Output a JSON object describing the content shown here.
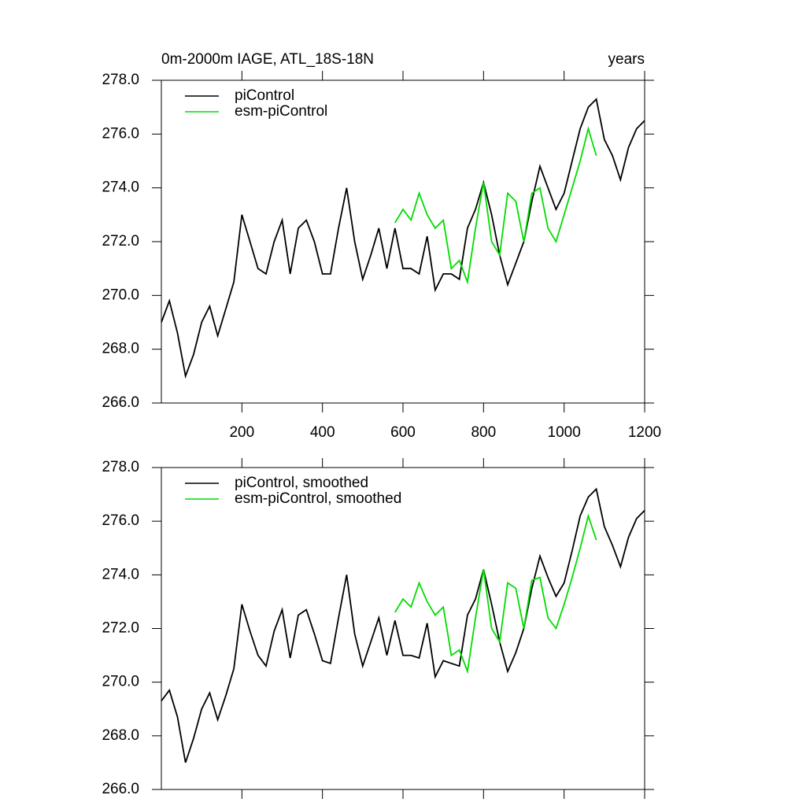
{
  "chart_data": [
    {
      "type": "line",
      "title": "0m-2000m IAGE, ATL_18S-18N",
      "xlabel": "years",
      "xlim": [
        0,
        1200
      ],
      "xticks": [
        200,
        400,
        600,
        800,
        1000,
        1200
      ],
      "show_xtick_labels": true,
      "ylim": [
        266,
        278
      ],
      "yticks": [
        {
          "value": 266,
          "label": "266.0"
        },
        {
          "value": 268,
          "label": "268.0"
        },
        {
          "value": 270,
          "label": "270.0"
        },
        {
          "value": 272,
          "label": "272.0"
        },
        {
          "value": 274,
          "label": "274.0"
        },
        {
          "value": 276,
          "label": "276.0"
        },
        {
          "value": 278,
          "label": "278.0"
        }
      ],
      "legend": "upper left",
      "series": [
        {
          "name": "piControl",
          "color": "#000000",
          "x": [
            0,
            20,
            40,
            60,
            80,
            100,
            120,
            140,
            160,
            180,
            200,
            220,
            240,
            260,
            280,
            300,
            320,
            340,
            360,
            380,
            400,
            420,
            440,
            460,
            480,
            500,
            520,
            540,
            560,
            580,
            600,
            620,
            640,
            660,
            680,
            700,
            720,
            740,
            760,
            780,
            800,
            820,
            840,
            860,
            880,
            900,
            920,
            940,
            960,
            980,
            1000,
            1020,
            1040,
            1060,
            1080,
            1100,
            1120,
            1140,
            1160,
            1180,
            1200
          ],
          "values": [
            269.0,
            269.8,
            268.6,
            267.0,
            267.8,
            269.0,
            269.6,
            268.5,
            269.5,
            270.5,
            273.0,
            272.0,
            271.0,
            270.8,
            272.0,
            272.8,
            270.8,
            272.5,
            272.8,
            272.0,
            270.8,
            270.8,
            272.5,
            274.0,
            272.0,
            270.6,
            271.5,
            272.5,
            271.0,
            272.5,
            271.0,
            271.0,
            270.8,
            272.2,
            270.2,
            270.8,
            270.8,
            270.6,
            272.5,
            273.2,
            274.2,
            273.0,
            271.5,
            270.4,
            271.2,
            272.0,
            273.5,
            274.8,
            274.0,
            273.2,
            273.8,
            275.0,
            276.2,
            277.0,
            277.3,
            275.8,
            275.2,
            274.3,
            275.5,
            276.2,
            276.5
          ]
        },
        {
          "name": "esm-piControl",
          "color": "#00dd00",
          "x": [
            580,
            600,
            620,
            640,
            660,
            680,
            700,
            720,
            740,
            760,
            780,
            800,
            820,
            840,
            860,
            880,
            900,
            920,
            940,
            960,
            980,
            1000,
            1020,
            1040,
            1060,
            1080
          ],
          "values": [
            272.7,
            273.2,
            272.8,
            273.8,
            273.0,
            272.5,
            272.8,
            271.0,
            271.3,
            270.5,
            272.5,
            274.2,
            272.0,
            271.5,
            273.8,
            273.5,
            272.0,
            273.8,
            274.0,
            272.5,
            272.0,
            273.0,
            274.0,
            275.0,
            276.2,
            275.2
          ]
        }
      ]
    },
    {
      "type": "line",
      "xlim": [
        0,
        1200
      ],
      "xticks": [
        200,
        400,
        600,
        800,
        1000,
        1200
      ],
      "show_xtick_labels": false,
      "ylim": [
        266,
        278
      ],
      "yticks": [
        {
          "value": 266,
          "label": "266.0"
        },
        {
          "value": 268,
          "label": "268.0"
        },
        {
          "value": 270,
          "label": "270.0"
        },
        {
          "value": 272,
          "label": "272.0"
        },
        {
          "value": 274,
          "label": "274.0"
        },
        {
          "value": 276,
          "label": "276.0"
        },
        {
          "value": 278,
          "label": "278.0"
        }
      ],
      "legend": "upper left",
      "series": [
        {
          "name": "piControl, smoothed",
          "color": "#000000",
          "x": [
            0,
            20,
            40,
            60,
            80,
            100,
            120,
            140,
            160,
            180,
            200,
            220,
            240,
            260,
            280,
            300,
            320,
            340,
            360,
            380,
            400,
            420,
            440,
            460,
            480,
            500,
            520,
            540,
            560,
            580,
            600,
            620,
            640,
            660,
            680,
            700,
            720,
            740,
            760,
            780,
            800,
            820,
            840,
            860,
            880,
            900,
            920,
            940,
            960,
            980,
            1000,
            1020,
            1040,
            1060,
            1080,
            1100,
            1120,
            1140,
            1160,
            1180,
            1200
          ],
          "values": [
            269.3,
            269.7,
            268.7,
            267.0,
            267.9,
            269.0,
            269.6,
            268.6,
            269.5,
            270.5,
            272.9,
            271.9,
            271.0,
            270.6,
            271.9,
            272.7,
            270.9,
            272.5,
            272.7,
            271.8,
            270.8,
            270.7,
            272.4,
            274.0,
            271.8,
            270.6,
            271.5,
            272.4,
            271.0,
            272.3,
            271.0,
            271.0,
            270.9,
            272.2,
            270.2,
            270.8,
            270.7,
            270.6,
            272.5,
            273.1,
            274.2,
            272.9,
            271.5,
            270.4,
            271.1,
            272.0,
            273.5,
            274.7,
            273.9,
            273.2,
            273.7,
            274.9,
            276.2,
            276.9,
            277.2,
            275.8,
            275.1,
            274.3,
            275.4,
            276.1,
            276.4
          ]
        },
        {
          "name": "esm-piControl, smoothed",
          "color": "#00dd00",
          "x": [
            580,
            600,
            620,
            640,
            660,
            680,
            700,
            720,
            740,
            760,
            780,
            800,
            820,
            840,
            860,
            880,
            900,
            920,
            940,
            960,
            980,
            1000,
            1020,
            1040,
            1060,
            1080
          ],
          "values": [
            272.6,
            273.1,
            272.8,
            273.7,
            273.0,
            272.5,
            272.8,
            271.0,
            271.2,
            270.4,
            272.4,
            274.2,
            272.0,
            271.5,
            273.7,
            273.5,
            272.0,
            273.8,
            273.9,
            272.4,
            272.0,
            272.9,
            273.9,
            275.0,
            276.2,
            275.3
          ]
        }
      ]
    }
  ]
}
